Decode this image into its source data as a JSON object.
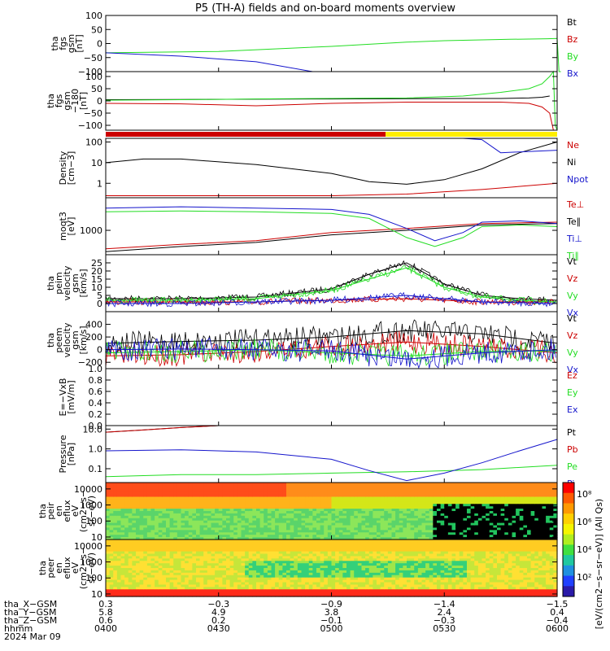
{
  "title": "P5 (TH-A) fields and on-board moments overview",
  "colors": {
    "black": "#000000",
    "red": "#cc0000",
    "green": "#22dd22",
    "blue": "#1515cc",
    "yellow": "#ffee00"
  },
  "chart_data": [
    {
      "id": "fgs_full",
      "type": "line",
      "ylabel": [
        "tha",
        "fgs",
        "gsm",
        "[nT]"
      ],
      "ylim": [
        -100,
        100
      ],
      "yticks": [
        "100",
        "50",
        "0",
        "−50",
        "−100"
      ],
      "series": [
        {
          "name": "Bt",
          "color": "#000000",
          "x": [],
          "y": []
        },
        {
          "name": "Bz",
          "color": "#cc0000",
          "x": [],
          "y": []
        },
        {
          "name": "By",
          "color": "#22dd22",
          "x": [
            0,
            60,
            120,
            160,
            180,
            200,
            215,
            225,
            235,
            240,
            241,
            242
          ],
          "y": [
            -33,
            -28,
            -10,
            5,
            10,
            13,
            15,
            16,
            17,
            18,
            -100,
            -100
          ]
        },
        {
          "name": "Bx",
          "color": "#1515cc",
          "x": [
            0,
            40,
            80,
            110
          ],
          "y": [
            -33,
            -45,
            -65,
            -100
          ]
        }
      ]
    },
    {
      "id": "fgs_clip",
      "type": "line",
      "ylabel": [
        "tha",
        "fgs",
        "gsm",
        "−180",
        "[nT]"
      ],
      "ylim": [
        -120,
        120
      ],
      "yticks": [
        "100",
        "50",
        "0",
        "−50",
        "−100"
      ],
      "series": [
        {
          "name": "Bt",
          "color": "#000000",
          "x": [
            0,
            40,
            80,
            120,
            160,
            190,
            210,
            225,
            232,
            236
          ],
          "y": [
            5,
            6,
            7,
            8,
            9,
            10,
            10,
            12,
            15,
            20
          ]
        },
        {
          "name": "Bz",
          "color": "#cc0000",
          "x": [
            0,
            40,
            80,
            120,
            160,
            190,
            210,
            225,
            232,
            236,
            238
          ],
          "y": [
            -10,
            -12,
            -20,
            -10,
            -5,
            -5,
            -5,
            -10,
            -25,
            -50,
            -120
          ]
        },
        {
          "name": "By",
          "color": "#22dd22",
          "x": [
            0,
            40,
            80,
            120,
            160,
            190,
            210,
            225,
            232,
            236,
            238,
            239,
            240
          ],
          "y": [
            3,
            5,
            8,
            10,
            12,
            20,
            35,
            50,
            70,
            100,
            120,
            -100,
            -120
          ]
        },
        {
          "name": "Bx",
          "color": "#1515cc",
          "x": [],
          "y": []
        }
      ]
    },
    {
      "id": "density",
      "type": "line",
      "ylabel": [
        "Density",
        "[cm−3]"
      ],
      "yscale": "log",
      "ylim": [
        0.2,
        150
      ],
      "yticks": [
        "100",
        "10",
        "1"
      ],
      "series": [
        {
          "name": "Ne",
          "color": "#cc0000",
          "x": [
            0,
            40,
            80,
            120,
            160,
            200,
            240
          ],
          "y": [
            0.25,
            0.25,
            0.25,
            0.25,
            0.3,
            0.5,
            1.0
          ]
        },
        {
          "name": "Ni",
          "color": "#000000",
          "x": [
            0,
            20,
            40,
            80,
            120,
            140,
            160,
            180,
            200,
            220,
            240
          ],
          "y": [
            10,
            15,
            15,
            8,
            3,
            1.2,
            0.9,
            1.5,
            5,
            30,
            100
          ]
        },
        {
          "name": "Npot",
          "color": "#1515cc",
          "x": [
            160,
            180,
            190,
            200,
            210,
            240
          ],
          "y": [
            150,
            150,
            150,
            130,
            30,
            40
          ]
        }
      ]
    },
    {
      "id": "temperature",
      "type": "line",
      "ylabel": [
        "moqt3",
        "[eV]"
      ],
      "yscale": "log",
      "ylim": [
        300,
        5000
      ],
      "yticks": [
        "1000"
      ],
      "series": [
        {
          "name": "Te⊥",
          "color": "#cc0000",
          "x": [
            0,
            40,
            80,
            120,
            160,
            200,
            240
          ],
          "y": [
            400,
            500,
            600,
            900,
            1100,
            1400,
            1500
          ]
        },
        {
          "name": "Te∥",
          "color": "#000000",
          "x": [
            0,
            40,
            80,
            120,
            160,
            200,
            240
          ],
          "y": [
            350,
            450,
            550,
            800,
            1000,
            1300,
            1400
          ]
        },
        {
          "name": "Ti⊥",
          "color": "#1515cc",
          "x": [
            0,
            40,
            80,
            120,
            140,
            160,
            175,
            190,
            200,
            220,
            240
          ],
          "y": [
            3000,
            3200,
            3000,
            2800,
            2200,
            1100,
            600,
            900,
            1500,
            1600,
            1400
          ]
        },
        {
          "name": "Ti∥",
          "color": "#22dd22",
          "x": [
            0,
            40,
            80,
            120,
            140,
            160,
            175,
            190,
            200,
            220,
            240
          ],
          "y": [
            2500,
            2600,
            2500,
            2300,
            1800,
            700,
            450,
            700,
            1200,
            1300,
            1200
          ]
        }
      ]
    },
    {
      "id": "peim_velocity",
      "type": "line",
      "ylabel": [
        "tha",
        "peim",
        "velocity",
        "gsm",
        "[km/s]"
      ],
      "ylim": [
        -5,
        30
      ],
      "yticks": [
        "25",
        "20",
        "15",
        "10",
        "5",
        "0"
      ],
      "series": [
        {
          "name": "Vt",
          "color": "#000000",
          "x": [
            0,
            40,
            80,
            120,
            140,
            160,
            180,
            200,
            220,
            240
          ],
          "y": [
            3,
            3,
            4,
            9,
            18,
            25,
            12,
            5,
            3,
            2
          ]
        },
        {
          "name": "Vz",
          "color": "#cc0000",
          "x": [
            0,
            40,
            80,
            120,
            160,
            200,
            240
          ],
          "y": [
            1,
            1,
            1,
            2,
            3,
            1,
            1
          ]
        },
        {
          "name": "Vy",
          "color": "#22dd22",
          "x": [
            0,
            40,
            80,
            120,
            140,
            160,
            180,
            200,
            220,
            240
          ],
          "y": [
            2,
            2,
            3,
            8,
            15,
            22,
            10,
            4,
            2,
            1
          ]
        },
        {
          "name": "Vx",
          "color": "#1515cc",
          "x": [
            0,
            40,
            80,
            120,
            160,
            200,
            240
          ],
          "y": [
            0,
            0,
            1,
            2,
            5,
            1,
            0
          ]
        }
      ]
    },
    {
      "id": "peem_velocity",
      "type": "line",
      "ylabel": [
        "tha",
        "peem",
        "velocity",
        "gsm",
        "[km/s]"
      ],
      "ylim": [
        -300,
        600
      ],
      "yticks": [
        "400",
        "200",
        "0",
        "−200"
      ],
      "series": [
        {
          "name": "Vt",
          "color": "#000000",
          "x": [
            0,
            40,
            80,
            120,
            160,
            200,
            240
          ],
          "y": [
            100,
            130,
            150,
            200,
            300,
            250,
            100
          ]
        },
        {
          "name": "Vz",
          "color": "#cc0000",
          "x": [
            0,
            40,
            80,
            120,
            160,
            200,
            240
          ],
          "y": [
            -100,
            -80,
            -30,
            50,
            120,
            50,
            -50
          ]
        },
        {
          "name": "Vy",
          "color": "#22dd22",
          "x": [
            0,
            40,
            80,
            120,
            160,
            200,
            240
          ],
          "y": [
            -50,
            -30,
            0,
            -50,
            -100,
            -30,
            -20
          ]
        },
        {
          "name": "Vx",
          "color": "#1515cc",
          "x": [
            0,
            40,
            80,
            120,
            160,
            200,
            240
          ],
          "y": [
            0,
            10,
            0,
            -20,
            -150,
            -50,
            0
          ]
        }
      ]
    },
    {
      "id": "efield",
      "type": "line",
      "ylabel": [
        "E=−VxB",
        "[mV/m]"
      ],
      "ylim": [
        0,
        1
      ],
      "yticks": [
        "1.0",
        "0.8",
        "0.6",
        "0.4",
        "0.2",
        "0.0"
      ],
      "series": [
        {
          "name": "Ez",
          "color": "#cc0000",
          "x": [],
          "y": []
        },
        {
          "name": "Ey",
          "color": "#22dd22",
          "x": [],
          "y": []
        },
        {
          "name": "Ex",
          "color": "#1515cc",
          "x": [],
          "y": []
        }
      ]
    },
    {
      "id": "pressure",
      "type": "line",
      "ylabel": [
        "Pressure",
        "[nPa]"
      ],
      "yscale": "log",
      "ylim": [
        0.02,
        15
      ],
      "yticks": [
        "10.0",
        "1.0",
        "0.1"
      ],
      "series": [
        {
          "name": "Pt",
          "color": "#000000",
          "x": [
            0,
            20,
            40,
            60,
            80
          ],
          "y": [
            7,
            9,
            12,
            16,
            20
          ]
        },
        {
          "name": "Pb",
          "color": "#cc0000",
          "x": [
            0,
            20,
            40,
            60,
            80
          ],
          "y": [
            7,
            9,
            12,
            16,
            20
          ]
        },
        {
          "name": "Pe",
          "color": "#22dd22",
          "x": [
            0,
            40,
            80,
            120,
            160,
            200,
            240
          ],
          "y": [
            0.04,
            0.05,
            0.05,
            0.06,
            0.07,
            0.09,
            0.15
          ]
        },
        {
          "name": "Pi",
          "color": "#1515cc",
          "x": [
            0,
            40,
            80,
            120,
            140,
            160,
            180,
            200,
            220,
            240
          ],
          "y": [
            0.8,
            0.9,
            0.7,
            0.3,
            0.08,
            0.025,
            0.06,
            0.2,
            0.8,
            3
          ]
        }
      ]
    },
    {
      "id": "peir_spectrogram",
      "type": "heatmap",
      "ylabel": [
        "tha",
        "peir",
        "en",
        "eflux",
        "eV",
        "(cm2−s−",
        "sr−eV)"
      ],
      "yscale": "log",
      "ylim": [
        7,
        25000
      ],
      "yticks": [
        "10000",
        "1000",
        "100",
        "10"
      ]
    },
    {
      "id": "peer_spectrogram",
      "type": "heatmap",
      "ylabel": [
        "tha",
        "peer",
        "en",
        "eflux",
        "eV",
        "(cm2−s−",
        "sr−eV)"
      ],
      "yscale": "log",
      "ylim": [
        7,
        25000
      ],
      "yticks": [
        "10000",
        "1000",
        "100",
        "10"
      ]
    }
  ],
  "colorbar": {
    "label": "[eV/(cm2−s−sr−eV)] (All Qs)",
    "ticks": [
      "10⁸",
      "10⁶",
      "10⁴",
      "10²"
    ]
  },
  "legends": {
    "fgs_full": [
      "Bt",
      "Bz",
      "By",
      "Bx"
    ],
    "density": [
      "Ne",
      "Ni",
      "Npot"
    ],
    "temperature": [
      "Te⊥",
      "Te∥",
      "Ti⊥",
      "Ti∥"
    ],
    "peim_velocity": [
      "Vt",
      "Vz",
      "Vy",
      "Vx"
    ],
    "peem_velocity": [
      "Vt",
      "Vz",
      "Vy",
      "Vx"
    ],
    "efield": [
      "Ez",
      "Ey",
      "Ex"
    ],
    "pressure": [
      "Pt",
      "Pb",
      "Pe",
      "Pi"
    ]
  },
  "status_bar": {
    "red_fraction": 0.62,
    "colors": [
      "red",
      "yellow"
    ]
  },
  "xaxis": {
    "rows": [
      {
        "label": "tha_X−GSM",
        "values": [
          "0.3",
          "−0.3",
          "−0.9",
          "−1.4",
          "−1.5"
        ]
      },
      {
        "label": "tha_Y−GSM",
        "values": [
          "5.8",
          "4.9",
          "3.8",
          "2.4",
          "0.4"
        ]
      },
      {
        "label": "tha_Z−GSM",
        "values": [
          "0.6",
          "0.2",
          "−0.1",
          "−0.3",
          "−0.4"
        ]
      },
      {
        "label": "hhmm",
        "values": [
          "0400",
          "0430",
          "0500",
          "0530",
          "0600"
        ]
      }
    ],
    "date": "2024 Mar 09"
  }
}
